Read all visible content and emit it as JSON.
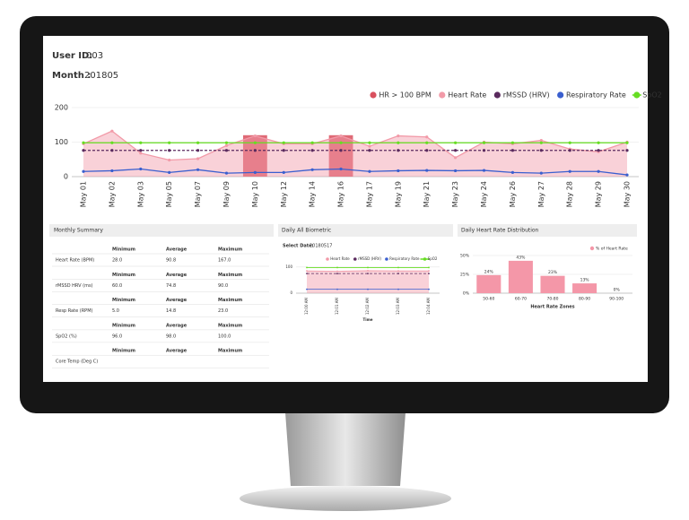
{
  "header": {
    "user_id_label": "User ID:",
    "user_id": "003",
    "month_label": "Month :",
    "month": "201805"
  },
  "chart_data": [
    {
      "type": "line",
      "categories": [
        "May 01",
        "May 02",
        "May 03",
        "May 05",
        "May 07",
        "May 09",
        "May 10",
        "May 12",
        "May 14",
        "May 16",
        "May 17",
        "May 19",
        "May 21",
        "May 23",
        "May 24",
        "May 26",
        "May 27",
        "May 28",
        "May 29",
        "May 30"
      ],
      "ylim": [
        0,
        200
      ],
      "yticks": [
        0,
        100,
        200
      ],
      "grid": true,
      "legend": "top-right",
      "series": [
        {
          "name": "HR > 100 BPM",
          "type": "bar",
          "color": "#d9505e",
          "values": [
            null,
            null,
            null,
            null,
            null,
            null,
            120,
            null,
            null,
            120,
            null,
            null,
            null,
            null,
            null,
            null,
            null,
            null,
            null,
            null
          ]
        },
        {
          "name": "Heart Rate",
          "type": "area",
          "color": "#f29aa8",
          "values": [
            95,
            132,
            68,
            48,
            52,
            90,
            118,
            95,
            95,
            118,
            88,
            118,
            115,
            55,
            100,
            95,
            105,
            80,
            72,
            100
          ]
        },
        {
          "name": "rMSSD (HRV)",
          "type": "line",
          "dashed": true,
          "color": "#5a2a5e",
          "values": [
            76,
            76,
            76,
            76,
            76,
            76,
            76,
            76,
            76,
            76,
            76,
            76,
            76,
            76,
            76,
            76,
            76,
            76,
            76,
            76
          ]
        },
        {
          "name": "Respiratory Rate",
          "type": "line",
          "color": "#3a5fcf",
          "values": [
            15,
            17,
            22,
            12,
            20,
            10,
            12,
            12,
            20,
            22,
            15,
            17,
            18,
            17,
            18,
            12,
            10,
            15,
            15,
            5
          ]
        },
        {
          "name": "SpO2",
          "type": "line",
          "color": "#66dd22",
          "values": [
            98,
            98,
            98,
            98,
            98,
            98,
            98,
            98,
            98,
            98,
            98,
            98,
            98,
            98,
            98,
            98,
            98,
            98,
            98,
            98
          ]
        }
      ]
    },
    {
      "type": "line",
      "title": "Daily All Biometric",
      "select_label": "Select Date:",
      "select_value": "20180517",
      "categories": [
        "12:00 AM",
        "12:01 AM",
        "12:02 AM",
        "12:03 AM",
        "12:04 AM"
      ],
      "x_label": "Time",
      "ylim": [
        0,
        120
      ],
      "yticks": [
        0,
        100
      ],
      "grid": true,
      "legend": "top",
      "series": [
        {
          "name": "Heart Rate",
          "type": "area",
          "color": "#f29aa8",
          "values": [
            85,
            84,
            86,
            85,
            85
          ]
        },
        {
          "name": "rMSSD (HRV)",
          "type": "line",
          "dashed": true,
          "color": "#5a2a5e",
          "values": [
            75,
            75,
            75,
            75,
            75
          ]
        },
        {
          "name": "Respiratory Rate",
          "type": "line",
          "color": "#3a5fcf",
          "values": [
            15,
            15,
            15,
            15,
            15
          ]
        },
        {
          "name": "SpO2",
          "type": "line",
          "color": "#66dd22",
          "values": [
            98,
            98,
            98,
            98,
            98
          ]
        }
      ]
    },
    {
      "type": "bar",
      "title": "Daily Heart Rate Distribution",
      "categories": [
        "50-60",
        "60-70",
        "70-80",
        "80-90",
        "90-100"
      ],
      "x_label": "Heart Rate Zones",
      "ylim": [
        0,
        50
      ],
      "yticks": [
        {
          "value": 0,
          "label": "0%"
        },
        {
          "value": 25,
          "label": "25%"
        },
        {
          "value": 50,
          "label": "50%"
        }
      ],
      "grid": true,
      "legend": "top-right",
      "series": [
        {
          "name": "% of Heart Rate",
          "color": "#f497a8",
          "values": [
            24,
            43,
            23,
            13,
            0
          ],
          "value_labels": [
            "24%",
            "43%",
            "23%",
            "13%",
            "0%"
          ]
        }
      ]
    }
  ],
  "summary": {
    "title": "Monthly Summary",
    "columns": [
      "Minimum",
      "Average",
      "Maximum"
    ],
    "rows": [
      [
        "Heart Rate (BPM)",
        "28.0",
        "90.8",
        "167.0"
      ],
      [
        "rMSSD HRV (ms)",
        "60.0",
        "74.8",
        "90.0"
      ],
      [
        "Resp Rate (RPM)",
        "5.0",
        "14.8",
        "23.0"
      ],
      [
        "SpO2 (%)",
        "96.0",
        "98.0",
        "100.0"
      ],
      [
        "Core Temp (Deg C)"
      ]
    ]
  }
}
